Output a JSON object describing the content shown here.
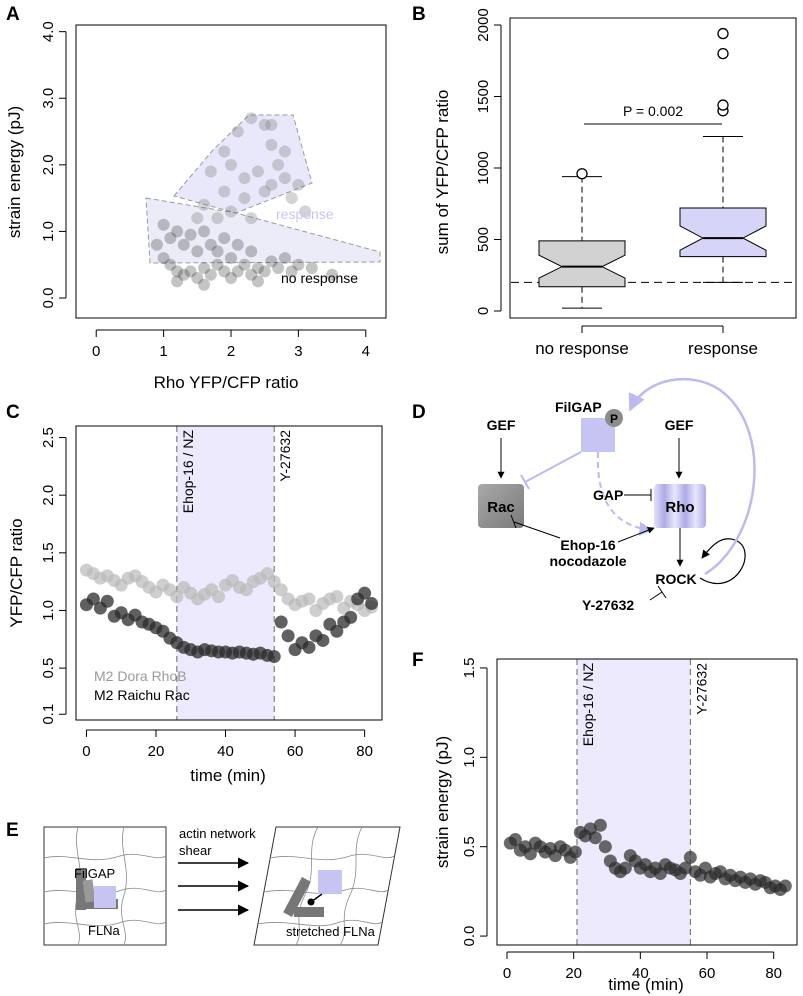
{
  "panels": {
    "A": "A",
    "B": "B",
    "C": "C",
    "D": "D",
    "E": "E",
    "F": "F"
  },
  "colors": {
    "lavender": "#e9e8fb",
    "lavender_dark": "#bfbdf0",
    "response_text": "#c8c6f3",
    "gray_box": "#d2d2d2",
    "dark_point": "#2b2b2b",
    "light_point": "#b9b9b9"
  },
  "chart_data": [
    {
      "id": "A",
      "type": "scatter",
      "xlabel": "Rho YFP/CFP ratio",
      "ylabel": "strain energy (pJ)",
      "xlim": [
        -0.3,
        4.3
      ],
      "ylim": [
        -0.3,
        4.1
      ],
      "xticks": [
        "0",
        "1",
        "2",
        "3",
        "4"
      ],
      "yticks": [
        "0.0",
        "1.0",
        "2.0",
        "3.0",
        "4.0"
      ],
      "annotations": {
        "response": "response",
        "no_response": "no response"
      },
      "response_points": [
        [
          1.7,
          1.9
        ],
        [
          1.9,
          2.2
        ],
        [
          2.1,
          2.5
        ],
        [
          2.3,
          2.7
        ],
        [
          2.5,
          2.6
        ],
        [
          2.6,
          2.3
        ],
        [
          2.7,
          2.0
        ],
        [
          2.8,
          1.8
        ],
        [
          2.5,
          1.6
        ],
        [
          2.2,
          1.5
        ],
        [
          1.9,
          1.6
        ],
        [
          1.6,
          1.4
        ],
        [
          1.5,
          1.2
        ],
        [
          2.9,
          1.5
        ],
        [
          3.1,
          1.3
        ],
        [
          2.4,
          1.9
        ],
        [
          2.0,
          1.3
        ],
        [
          2.6,
          2.6
        ],
        [
          2.8,
          2.2
        ],
        [
          1.8,
          1.2
        ],
        [
          2.3,
          1.2
        ],
        [
          2.6,
          1.7
        ],
        [
          3.0,
          1.7
        ],
        [
          2.0,
          2.0
        ],
        [
          2.2,
          1.8
        ]
      ],
      "no_response_points": [
        [
          0.9,
          0.8
        ],
        [
          1.0,
          0.6
        ],
        [
          1.1,
          0.5
        ],
        [
          1.2,
          0.4
        ],
        [
          1.3,
          0.35
        ],
        [
          1.4,
          0.4
        ],
        [
          1.5,
          0.3
        ],
        [
          1.6,
          0.45
        ],
        [
          1.7,
          0.35
        ],
        [
          1.8,
          0.5
        ],
        [
          1.9,
          0.4
        ],
        [
          2.0,
          0.6
        ],
        [
          2.1,
          0.4
        ],
        [
          2.2,
          0.5
        ],
        [
          2.3,
          0.35
        ],
        [
          2.4,
          0.45
        ],
        [
          2.5,
          0.4
        ],
        [
          2.6,
          0.55
        ],
        [
          2.7,
          0.45
        ],
        [
          2.8,
          0.6
        ],
        [
          2.9,
          0.4
        ],
        [
          3.0,
          0.5
        ],
        [
          3.2,
          0.45
        ],
        [
          3.5,
          0.35
        ],
        [
          1.1,
          0.9
        ],
        [
          1.3,
          0.8
        ],
        [
          1.5,
          0.7
        ],
        [
          1.7,
          0.8
        ],
        [
          1.9,
          0.9
        ],
        [
          2.1,
          0.8
        ],
        [
          2.3,
          0.7
        ],
        [
          1.0,
          1.1
        ],
        [
          1.2,
          1.0
        ],
        [
          1.4,
          0.95
        ],
        [
          1.6,
          1.0
        ],
        [
          1.8,
          0.7
        ],
        [
          2.0,
          0.3
        ],
        [
          1.2,
          0.25
        ],
        [
          1.6,
          0.2
        ],
        [
          2.4,
          0.25
        ]
      ]
    },
    {
      "id": "B",
      "type": "box",
      "ylabel": "sum of YFP/CFP ratio",
      "categories": [
        "no response",
        "response"
      ],
      "yticks": [
        "0",
        "500",
        "1000",
        "1500",
        "2000"
      ],
      "ylim": [
        -50,
        2100
      ],
      "series": [
        {
          "name": "no response",
          "min": 20,
          "q1": 170,
          "median": 310,
          "q3": 490,
          "max": 940,
          "outliers": [
            960
          ]
        },
        {
          "name": "response",
          "min": 200,
          "q1": 380,
          "median": 510,
          "q3": 720,
          "max": 1220,
          "outliers": [
            1400,
            1440,
            1800,
            1940
          ]
        }
      ],
      "reference_line": 200,
      "significance": "P = 0.002"
    },
    {
      "id": "C",
      "type": "scatter",
      "xlabel": "time (min)",
      "ylabel": "YFP/CFP ratio",
      "xlim": [
        -3,
        85
      ],
      "ylim": [
        0.05,
        2.6
      ],
      "xticks": [
        "0",
        "20",
        "40",
        "60",
        "80"
      ],
      "yticks": [
        "0.1",
        "0.5",
        "1.0",
        "1.5",
        "2.0",
        "2.5"
      ],
      "shaded_interval": [
        26,
        54
      ],
      "markers": {
        "start": "Ehop-16 / NZ",
        "end": "Y-27632"
      },
      "legend": [
        "M2 Dora RhoB",
        "M2 Raichu Rac"
      ],
      "series": [
        {
          "name": "M2 Dora RhoB",
          "x": [
            0,
            2,
            4,
            6,
            8,
            10,
            12,
            14,
            16,
            18,
            20,
            22,
            24,
            26,
            28,
            30,
            32,
            34,
            36,
            38,
            40,
            42,
            44,
            46,
            48,
            50,
            52,
            54,
            56,
            58,
            60,
            62,
            64,
            66,
            68,
            70,
            72,
            74,
            76,
            78,
            80,
            82
          ],
          "y": [
            1.35,
            1.32,
            1.28,
            1.3,
            1.26,
            1.22,
            1.28,
            1.3,
            1.25,
            1.2,
            1.16,
            1.22,
            1.18,
            1.12,
            1.2,
            1.15,
            1.1,
            1.14,
            1.18,
            1.12,
            1.22,
            1.26,
            1.2,
            1.18,
            1.25,
            1.28,
            1.32,
            1.25,
            1.18,
            1.1,
            1.05,
            1.08,
            1.1,
            1.0,
            1.06,
            1.1,
            1.12,
            1.02,
            1.08,
            1.05,
            1.0,
            1.03
          ]
        },
        {
          "name": "M2 Raichu Rac",
          "x": [
            0,
            2,
            4,
            6,
            8,
            10,
            12,
            14,
            16,
            18,
            20,
            22,
            24,
            26,
            28,
            30,
            32,
            34,
            36,
            38,
            40,
            42,
            44,
            46,
            48,
            50,
            52,
            54,
            56,
            58,
            60,
            62,
            64,
            66,
            68,
            70,
            72,
            74,
            76,
            78,
            80,
            82
          ],
          "y": [
            1.05,
            1.1,
            1.02,
            1.08,
            0.95,
            0.98,
            0.92,
            0.96,
            0.9,
            0.88,
            0.85,
            0.82,
            0.76,
            0.72,
            0.68,
            0.66,
            0.64,
            0.66,
            0.65,
            0.64,
            0.64,
            0.63,
            0.64,
            0.63,
            0.62,
            0.63,
            0.61,
            0.6,
            0.9,
            0.78,
            0.66,
            0.72,
            0.68,
            0.78,
            0.74,
            0.88,
            0.82,
            0.9,
            0.94,
            1.1,
            1.15,
            1.06
          ]
        }
      ]
    },
    {
      "id": "F",
      "type": "scatter",
      "xlabel": "time (min)",
      "ylabel": "strain energy (pJ)",
      "xlim": [
        -3,
        87
      ],
      "ylim": [
        -0.05,
        1.55
      ],
      "xticks": [
        "0",
        "20",
        "40",
        "60",
        "80"
      ],
      "yticks": [
        "0.0",
        "0.5",
        "1.0",
        "1.5"
      ],
      "shaded_interval": [
        21,
        55
      ],
      "markers": {
        "start": "Ehop-16 / NZ",
        "end": "Y-27632"
      },
      "series": [
        {
          "name": "strain energy",
          "x": [
            1,
            2.5,
            4,
            5.5,
            7,
            8.5,
            10,
            11.5,
            13,
            14.5,
            16,
            17.5,
            19,
            20.5,
            22,
            23.5,
            25,
            26.5,
            28,
            29.5,
            31,
            32.5,
            34,
            35.5,
            37,
            38.5,
            40,
            41.5,
            43,
            44.5,
            46,
            47.5,
            49,
            50.5,
            52,
            53.5,
            55,
            56.5,
            58,
            59.5,
            61,
            62.5,
            64,
            65.5,
            67,
            68.5,
            70,
            71.5,
            73,
            74.5,
            76,
            77.5,
            79,
            80.5,
            82,
            83.5
          ],
          "y": [
            0.52,
            0.54,
            0.48,
            0.5,
            0.46,
            0.52,
            0.5,
            0.47,
            0.49,
            0.45,
            0.5,
            0.48,
            0.44,
            0.47,
            0.58,
            0.56,
            0.6,
            0.55,
            0.62,
            0.5,
            0.42,
            0.38,
            0.36,
            0.38,
            0.45,
            0.42,
            0.38,
            0.4,
            0.36,
            0.38,
            0.35,
            0.4,
            0.38,
            0.37,
            0.35,
            0.38,
            0.44,
            0.36,
            0.34,
            0.38,
            0.33,
            0.35,
            0.36,
            0.32,
            0.34,
            0.31,
            0.33,
            0.3,
            0.32,
            0.29,
            0.31,
            0.3,
            0.27,
            0.28,
            0.26,
            0.28
          ]
        }
      ]
    }
  ],
  "diagram": {
    "nodes": {
      "filgap": "FilGAP",
      "phos": "P",
      "gef_left": "GEF",
      "gef_right": "GEF",
      "rac": "Rac",
      "rho": "Rho",
      "gap": "GAP",
      "inhibitor_line1": "Ehop-16",
      "inhibitor_line2": "nocodazole",
      "rock": "ROCK",
      "y27632": "Y-27632"
    }
  },
  "schematic": {
    "shear_line1": "actin network",
    "shear_line2": "shear",
    "filgap": "FilGAP",
    "flna": "FLNa",
    "stretched": "stretched FLNa"
  }
}
